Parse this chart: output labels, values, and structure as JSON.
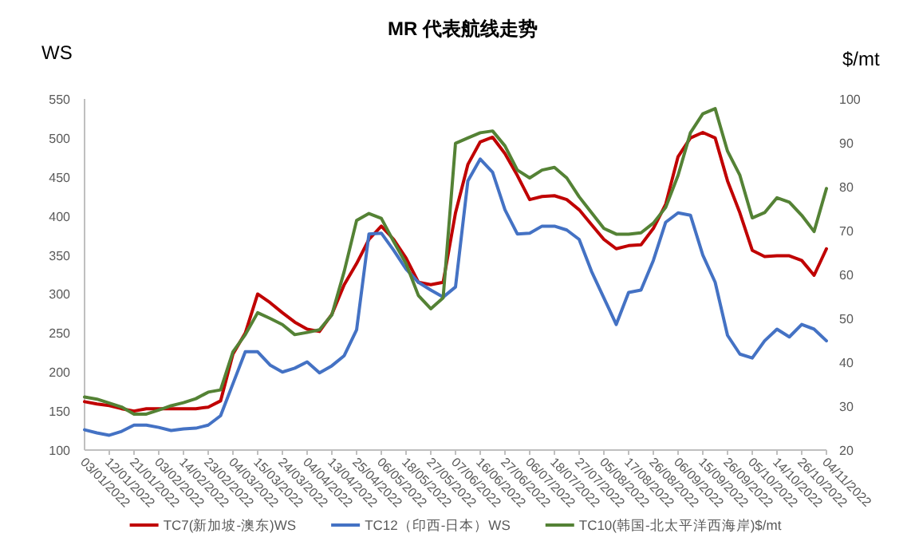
{
  "chart_data": {
    "type": "line",
    "title": "MR 代表航线走势",
    "ylabel": "WS",
    "y2label": "$/mt",
    "categories": [
      "03/01/2022",
      null,
      "12/01/2022",
      null,
      "21/01/2022",
      null,
      "03/02/2022",
      null,
      "14/02/2022",
      null,
      "23/02/2022",
      null,
      "04/03/2022",
      null,
      "15/03/2022",
      null,
      "24/03/2022",
      null,
      "04/04/2022",
      null,
      "13/04/2022",
      null,
      "25/04/2022",
      null,
      "06/05/2022",
      null,
      "18/05/2022",
      null,
      "27/05/2022",
      null,
      "07/06/2022",
      null,
      "16/06/2022",
      null,
      "27/06/2022",
      null,
      "06/07/2022",
      null,
      "18/07/2022",
      null,
      "27/07/2022",
      null,
      "05/08/2022",
      null,
      "17/08/2022",
      null,
      "26/08/2022",
      null,
      "06/09/2022",
      null,
      "15/09/2022",
      null,
      "26/09/2022",
      null,
      "05/10/2022",
      null,
      "14/10/2022",
      null,
      "26/10/2022",
      null,
      "04/11/2022"
    ],
    "series": [
      {
        "name": "TC7(新加坡-澳东)WS",
        "color": "#c00000",
        "values": [
          162,
          159,
          157,
          153,
          150,
          153,
          153,
          153,
          153,
          153,
          155,
          163,
          223,
          250,
          300,
          289,
          276,
          264,
          255,
          252,
          274,
          312,
          339,
          370,
          387,
          370,
          346,
          315,
          312,
          315,
          404,
          466,
          495,
          501,
          480,
          452,
          421,
          425,
          426,
          421,
          408,
          389,
          370,
          358,
          362,
          363,
          384,
          415,
          476,
          500,
          507,
          500,
          445,
          404,
          356,
          348,
          349,
          349,
          343,
          324,
          358
        ]
      },
      {
        "name": "TC12（印西-日本）WS",
        "color": "#4472c4",
        "values": [
          126,
          122,
          119,
          124,
          132,
          132,
          129,
          125,
          127,
          128,
          132,
          144,
          185,
          226,
          226,
          209,
          200,
          205,
          213,
          199,
          208,
          221,
          254,
          377,
          378,
          356,
          332,
          315,
          305,
          296,
          309,
          445,
          473,
          456,
          408,
          377,
          378,
          387,
          387,
          382,
          370,
          329,
          295,
          261,
          302,
          305,
          343,
          392,
          404,
          401,
          350,
          315,
          247,
          223,
          218,
          240,
          255,
          245,
          261,
          255,
          240
        ]
      },
      {
        "name": "TC10(韩国-北太平洋西海岸)$/mt",
        "color": "#548235",
        "axis": "y2",
        "values": [
          32.1,
          31.6,
          30.7,
          29.8,
          28.2,
          28.2,
          29.1,
          30.1,
          30.8,
          31.7,
          33.2,
          33.7,
          42.4,
          46.3,
          51.3,
          50.0,
          48.6,
          46.3,
          46.8,
          47.4,
          50.8,
          60.7,
          72.3,
          73.9,
          72.8,
          67.5,
          62.5,
          55.2,
          52.2,
          54.7,
          89.9,
          91.1,
          92.3,
          92.7,
          89.3,
          83.8,
          82.0,
          83.8,
          84.4,
          82.0,
          77.7,
          74.1,
          70.5,
          69.2,
          69.2,
          69.5,
          71.7,
          75.3,
          82.6,
          92.3,
          96.6,
          97.8,
          88.1,
          82.6,
          72.9,
          74.1,
          77.5,
          76.5,
          73.5,
          69.8,
          79.6
        ]
      }
    ],
    "ylim": [
      100,
      550
    ],
    "yticks": [
      100,
      150,
      200,
      250,
      300,
      350,
      400,
      450,
      500,
      550
    ],
    "y2lim": [
      20,
      100
    ],
    "y2ticks": [
      20,
      30,
      40,
      50,
      60,
      70,
      80,
      90,
      100
    ],
    "legend": "bottom",
    "grid": false
  }
}
